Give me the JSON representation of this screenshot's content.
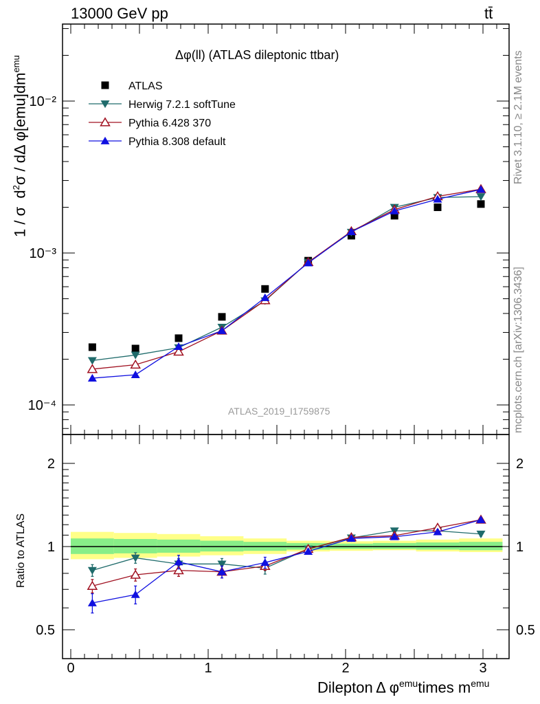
{
  "header": {
    "left": "13000 GeV pp",
    "right": "tt̄"
  },
  "side": {
    "rivet": "Rivet 3.1.10, ≥ 2.1M events",
    "mcplots": "mcplots.cern.ch [arXiv:1306.3436]"
  },
  "plot_title": "Δφ(ll) (ATLAS dileptonic ttbar)",
  "watermark": "ATLAS_2019_I1759875",
  "chart_data": [
    {
      "type": "scatter",
      "title": "Δφ(ll) (ATLAS dileptonic ttbar)",
      "ylabel": "1 / σ  d²σ / dΔ φ[emu]dm^emu",
      "xlabel": "Dilepton Δ φ^emu times m^emu",
      "yscale": "log",
      "ylim": [
        6e-05,
        0.033
      ],
      "xlim": [
        -0.12,
        3.2
      ],
      "ytick_labels": [
        "10⁻⁴",
        "10⁻³",
        "10⁻²"
      ],
      "x": [
        0.157,
        0.471,
        0.785,
        1.1,
        1.414,
        1.728,
        2.042,
        2.356,
        2.67,
        2.985
      ],
      "series": [
        {
          "name": "ATLAS",
          "color": "#000000",
          "marker": "square",
          "values": [
            0.00024,
            0.000235,
            0.000275,
            0.00038,
            0.00058,
            0.00089,
            0.0013,
            0.00176,
            0.002,
            0.0021
          ]
        },
        {
          "name": "Herwig 7.2.1 softTune",
          "color": "#1f6b6b",
          "marker": "triangle-down",
          "values": [
            0.000196,
            0.000213,
            0.000238,
            0.000325,
            0.000485,
            0.00087,
            0.00137,
            0.002,
            0.00232,
            0.00235
          ]
        },
        {
          "name": "Pythia 6.428 370",
          "color": "#a01020",
          "marker": "triangle-up-open",
          "values": [
            0.000172,
            0.000184,
            0.000224,
            0.000308,
            0.000488,
            0.00087,
            0.00139,
            0.00193,
            0.00236,
            0.00263
          ]
        },
        {
          "name": "Pythia 8.308 default",
          "color": "#1010e0",
          "marker": "triangle-up",
          "values": [
            0.00015,
            0.000158,
            0.000242,
            0.000308,
            0.000508,
            0.00086,
            0.00138,
            0.00189,
            0.00226,
            0.00262
          ]
        }
      ]
    },
    {
      "type": "scatter",
      "ylabel": "Ratio to ATLAS",
      "yscale": "log",
      "ylim": [
        0.42,
        2.45
      ],
      "ytick_labels": [
        "0.5",
        "1",
        "2"
      ],
      "xtick_labels": [
        "0",
        "1",
        "2",
        "3"
      ],
      "x": [
        0.157,
        0.471,
        0.785,
        1.1,
        1.414,
        1.728,
        2.042,
        2.356,
        2.67,
        2.985
      ],
      "band_edges": [
        0,
        0.314,
        0.628,
        0.942,
        1.257,
        1.571,
        1.885,
        2.199,
        2.513,
        2.827,
        3.142
      ],
      "band_yellow": [
        [
          0.9,
          1.13
        ],
        [
          0.91,
          1.12
        ],
        [
          0.92,
          1.11
        ],
        [
          0.93,
          1.09
        ],
        [
          0.94,
          1.07
        ],
        [
          0.96,
          1.05
        ],
        [
          0.965,
          1.045
        ],
        [
          0.97,
          1.05
        ],
        [
          0.96,
          1.06
        ],
        [
          0.955,
          1.07
        ]
      ],
      "band_green": [
        [
          0.94,
          1.07
        ],
        [
          0.945,
          1.065
        ],
        [
          0.95,
          1.06
        ],
        [
          0.96,
          1.05
        ],
        [
          0.965,
          1.04
        ],
        [
          0.975,
          1.03
        ],
        [
          0.98,
          1.025
        ],
        [
          0.98,
          1.03
        ],
        [
          0.975,
          1.035
        ],
        [
          0.97,
          1.04
        ]
      ],
      "series": [
        {
          "name": "Herwig 7.2.1 softTune",
          "color": "#1f6b6b",
          "marker": "triangle-down",
          "values": [
            0.82,
            0.91,
            0.865,
            0.865,
            0.835,
            0.98,
            1.075,
            1.14,
            1.14,
            1.11
          ],
          "errors": [
            0.04,
            0.04,
            0.04,
            0.04,
            0.04,
            0.02,
            0.02,
            0.02,
            0.02,
            0.02
          ]
        },
        {
          "name": "Pythia 6.428 370",
          "color": "#a01020",
          "marker": "triangle-up-open",
          "values": [
            0.72,
            0.79,
            0.82,
            0.81,
            0.85,
            0.98,
            1.08,
            1.095,
            1.17,
            1.25
          ],
          "errors": [
            0.04,
            0.04,
            0.04,
            0.04,
            0.03,
            0.02,
            0.02,
            0.02,
            0.02,
            0.02
          ]
        },
        {
          "name": "Pythia 8.308 default",
          "color": "#1010e0",
          "marker": "triangle-up",
          "values": [
            0.625,
            0.67,
            0.88,
            0.81,
            0.875,
            0.96,
            1.07,
            1.085,
            1.13,
            1.25
          ],
          "errors": [
            0.05,
            0.05,
            0.05,
            0.04,
            0.04,
            0.02,
            0.02,
            0.02,
            0.02,
            0.02
          ]
        }
      ]
    }
  ]
}
